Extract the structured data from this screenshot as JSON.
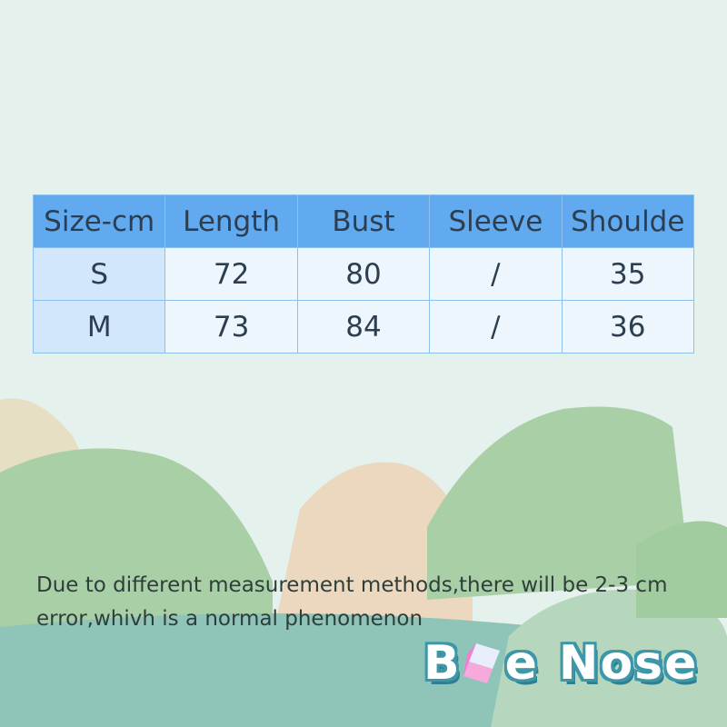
{
  "size_table": {
    "headers": [
      "Size-cm",
      "Length",
      "Bust",
      "Sleeve",
      "Shoulde"
    ],
    "rows": [
      [
        "S",
        "72",
        "80",
        "/",
        "35"
      ],
      [
        "M",
        "73",
        "84",
        "/",
        "36"
      ]
    ]
  },
  "note": "Due to different measurement methods,there will be 2-3 cm error,whivh is a normal phenomenon",
  "logo": {
    "part1": "B",
    "part2": "e",
    "part3": "Nose",
    "cube_icon": "pink-cube"
  },
  "colors": {
    "header": "#62aaf0",
    "first_col": "#d2e7fb",
    "cell": "#eef6fd",
    "logo_outline": "#3e97a8"
  }
}
